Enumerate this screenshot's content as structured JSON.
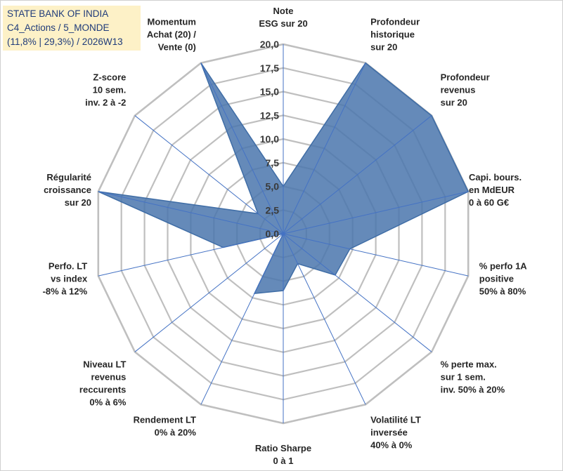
{
  "title_box": {
    "line1": "STATE BANK OF INDIA",
    "line2": "C4_Actions / 5_MONDE",
    "line3": "(11,8% | 29,3%) / 2026W13"
  },
  "colors": {
    "fill": "#4a76ad",
    "stroke": "#3f6da6",
    "grid": "#bfbfbf",
    "spoke": "#4472c4",
    "title_bg": "#fdf1c7",
    "title_text": "#1f3b7a"
  },
  "chart_data": {
    "type": "radar",
    "rlim": [
      0,
      20
    ],
    "ticks": [
      "0,0",
      "2,5",
      "5,0",
      "7,5",
      "10,0",
      "12,5",
      "15,0",
      "17,5",
      "20,0"
    ],
    "grid": true,
    "axes": [
      {
        "lines": [
          "Note",
          "ESG sur 20"
        ]
      },
      {
        "lines": [
          "Profondeur",
          "historique",
          "sur 20"
        ]
      },
      {
        "lines": [
          "Profondeur",
          "revenus",
          "sur 20"
        ]
      },
      {
        "lines": [
          "Capi. bours.",
          "en MdEUR",
          "0 à 60 G€"
        ]
      },
      {
        "lines": [
          "% perfo 1A",
          "positive",
          "50% à 80%"
        ]
      },
      {
        "lines": [
          "% perte max.",
          "sur 1 sem.",
          "inv. 50% à 20%"
        ]
      },
      {
        "lines": [
          "Volatilité LT",
          "inversée",
          "40% à 0%"
        ]
      },
      {
        "lines": [
          "Ratio Sharpe",
          "0 à 1"
        ]
      },
      {
        "lines": [
          "Rendement LT",
          "0% à 20%"
        ]
      },
      {
        "lines": [
          "Niveau LT",
          "revenus",
          "reccurents",
          "0% à 6%"
        ]
      },
      {
        "lines": [
          "Perfo. LT",
          "vs index",
          "-8% à 12%"
        ]
      },
      {
        "lines": [
          "Régularité",
          "croissance",
          "sur 20"
        ]
      },
      {
        "lines": [
          "Z-score",
          "10 sem.",
          "inv. 2 à -2"
        ]
      },
      {
        "lines": [
          "Momentum",
          "Achat (20) /",
          "Vente (0)"
        ]
      }
    ],
    "series": [
      {
        "name": "STATE BANK OF INDIA",
        "values": [
          5.0,
          20.0,
          20.0,
          20.0,
          7.2,
          7.0,
          3.5,
          6.0,
          7.0,
          0.0,
          6.5,
          20.0,
          3.4,
          20.0
        ]
      }
    ]
  }
}
